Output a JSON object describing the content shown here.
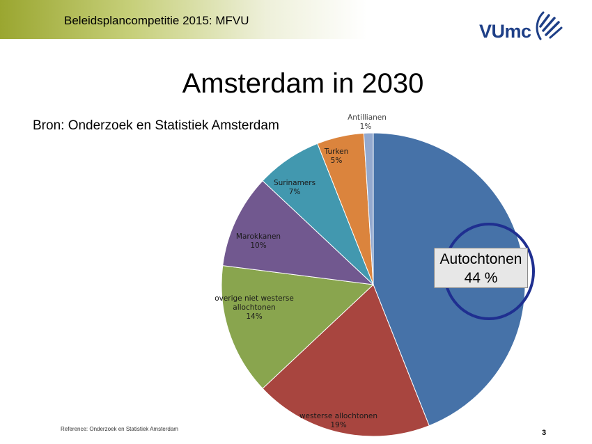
{
  "header": {
    "title": "Beleidsplancompetitie 2015: MFVU"
  },
  "logo": {
    "text": "VUmc"
  },
  "slide": {
    "title": "Amsterdam in 2030",
    "source": "Bron: Onderzoek en Statistiek Amsterdam",
    "callout_line1": "Autochtonen",
    "callout_line2": "44 %",
    "footnote": "Reference: Onderzoek en Statistiek Amsterdam",
    "page_number": "3"
  },
  "chart_data": {
    "type": "pie",
    "start_angle_deg": 0,
    "direction": "clockwise",
    "slices": [
      {
        "name": "",
        "label": "",
        "value": 44,
        "value_label": "",
        "color": "#4672a8"
      },
      {
        "name": "westerse allochtonen",
        "label": "westerse allochtonen",
        "value": 19,
        "value_label": "19%",
        "color": "#a8453f"
      },
      {
        "name": "overige niet westerse allochtonen",
        "label": "overige niet westerse allochtonen",
        "value": 14,
        "value_label": "14%",
        "color": "#89a54e"
      },
      {
        "name": "Marokkanen",
        "label": "Marokkanen",
        "value": 10,
        "value_label": "10%",
        "color": "#71588f"
      },
      {
        "name": "Surinamers",
        "label": "Surinamers",
        "value": 7,
        "value_label": "7%",
        "color": "#4298af"
      },
      {
        "name": "Turken",
        "label": "Turken",
        "value": 5,
        "value_label": "5%",
        "color": "#db843d"
      },
      {
        "name": "Antillianen",
        "label": "Antillianen",
        "value": 1,
        "value_label": "1%",
        "color": "#93a9cf"
      }
    ]
  }
}
